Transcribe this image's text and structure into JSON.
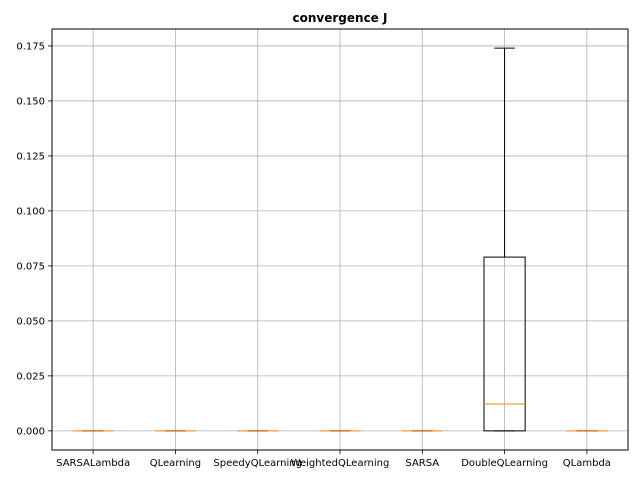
{
  "chart_data": {
    "type": "box",
    "title": "convergence J",
    "xlabel": "",
    "ylabel": "",
    "categories": [
      "SARSALambda",
      "QLearning",
      "SpeedyQLearning",
      "WeightedQLearning",
      "SARSA",
      "DoubleQLearning",
      "QLambda"
    ],
    "boxes": [
      {
        "q1": 0.0,
        "median": 0.0,
        "q3": 0.0,
        "whisker_low": 0.0,
        "whisker_high": 0.0
      },
      {
        "q1": 0.0,
        "median": 0.0,
        "q3": 0.0,
        "whisker_low": 0.0,
        "whisker_high": 0.0
      },
      {
        "q1": 0.0,
        "median": 0.0,
        "q3": 0.0,
        "whisker_low": 0.0,
        "whisker_high": 0.0
      },
      {
        "q1": 0.0,
        "median": 0.0,
        "q3": 0.0,
        "whisker_low": 0.0,
        "whisker_high": 0.0
      },
      {
        "q1": 0.0,
        "median": 0.0,
        "q3": 0.0,
        "whisker_low": 0.0,
        "whisker_high": 0.0
      },
      {
        "q1": 0.0,
        "median": 0.0122,
        "q3": 0.079,
        "whisker_low": 0.0,
        "whisker_high": 0.174
      },
      {
        "q1": 0.0,
        "median": 0.0,
        "q3": 0.0,
        "whisker_low": 0.0,
        "whisker_high": 0.0
      }
    ],
    "yticks": [
      "0.000",
      "0.025",
      "0.050",
      "0.075",
      "0.100",
      "0.125",
      "0.150",
      "0.175"
    ],
    "ytick_values": [
      0.0,
      0.025,
      0.05,
      0.075,
      0.1,
      0.125,
      0.15,
      0.175
    ],
    "ylim": [
      -0.0087,
      0.1827
    ],
    "grid": true,
    "colors": {
      "box": "#000000",
      "median": "#ff7f0e",
      "grid": "#b0b0b0"
    }
  }
}
